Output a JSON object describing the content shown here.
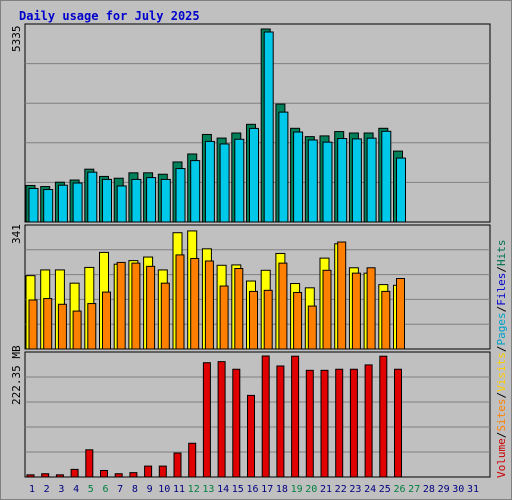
{
  "title": "Daily usage for July 2025",
  "panel_labels": {
    "top_max": "5335",
    "mid_max": "341",
    "bottom_max": "222.35 MB"
  },
  "legend": [
    {
      "text": "Volume",
      "color": "#cc0000"
    },
    {
      "text": "/",
      "color": "#000000"
    },
    {
      "text": "Sites",
      "color": "#ff8000"
    },
    {
      "text": "/",
      "color": "#000000"
    },
    {
      "text": "Visits",
      "color": "#ffd000"
    },
    {
      "text": "/",
      "color": "#000000"
    },
    {
      "text": "Pages",
      "color": "#00a0c8"
    },
    {
      "text": "/",
      "color": "#000000"
    },
    {
      "text": "Files",
      "color": "#0000cc"
    },
    {
      "text": "/",
      "color": "#000000"
    },
    {
      "text": "Hits",
      "color": "#007050"
    }
  ],
  "colors": {
    "hits": "#00805a",
    "files": "#00c8e8",
    "pages": "#00c8e8",
    "visits": "#ffff00",
    "sites": "#ff8000",
    "volume": "#e00000",
    "weekend_label": "#008040",
    "weekday_label": "#000080",
    "title": "#0000cc"
  },
  "chart_data": {
    "type": "bar",
    "title": "Daily usage for July 2025",
    "x": [
      "1",
      "2",
      "3",
      "4",
      "5",
      "6",
      "7",
      "8",
      "9",
      "10",
      "11",
      "12",
      "13",
      "14",
      "15",
      "16",
      "17",
      "18",
      "19",
      "20",
      "21",
      "22",
      "23",
      "24",
      "25",
      "26",
      "27",
      "28",
      "29",
      "30",
      "31"
    ],
    "weekend_days": [
      5,
      6,
      12,
      13,
      19,
      20,
      26,
      27
    ],
    "hits_files_panel": {
      "ymax": 5335,
      "series": [
        {
          "name": "Hits",
          "values": [
            1010,
            980,
            1100,
            1160,
            1460,
            1260,
            1210,
            1360,
            1360,
            1320,
            1660,
            1880,
            2420,
            2320,
            2460,
            2700,
            5335,
            3260,
            2590,
            2360,
            2380,
            2500,
            2460,
            2460,
            2590,
            1960,
            0,
            0,
            0,
            0,
            0
          ]
        },
        {
          "name": "Files",
          "values": [
            1010,
            980,
            1100,
            1160,
            1460,
            1260,
            1080,
            1260,
            1310,
            1260,
            1560,
            1780,
            2310,
            2240,
            2370,
            2670,
            5335,
            3120,
            2570,
            2350,
            2290,
            2390,
            2380,
            2400,
            2590,
            1850,
            0,
            0,
            0,
            0,
            0
          ]
        }
      ]
    },
    "visits_sites_panel": {
      "ymax": 341,
      "series": [
        {
          "name": "Visits",
          "values": [
            205,
            221,
            221,
            184,
            228,
            270,
            237,
            247,
            257,
            221,
            325,
            330,
            280,
            234,
            235,
            190,
            220,
            267,
            183,
            171,
            254,
            294,
            227,
            212,
            180,
            178,
            0,
            0,
            0,
            0,
            0
          ]
        },
        {
          "name": "Sites",
          "values": [
            137,
            141,
            125,
            106,
            127,
            159,
            242,
            240,
            231,
            184,
            263,
            253,
            246,
            176,
            225,
            161,
            164,
            240,
            158,
            120,
            220,
            299,
            212,
            227,
            161,
            197,
            0,
            0,
            0,
            0,
            0
          ]
        }
      ]
    },
    "volume_panel": {
      "ymax": 222.35,
      "unit": "MB",
      "series": [
        {
          "name": "Volume",
          "values": [
            4,
            6,
            4,
            14,
            50,
            12,
            6,
            8,
            20,
            20,
            44,
            62,
            210,
            212,
            198,
            150,
            222.35,
            204,
            222,
            196,
            196,
            198,
            198,
            206,
            222,
            198,
            0,
            0,
            0,
            0,
            0
          ]
        }
      ]
    }
  }
}
